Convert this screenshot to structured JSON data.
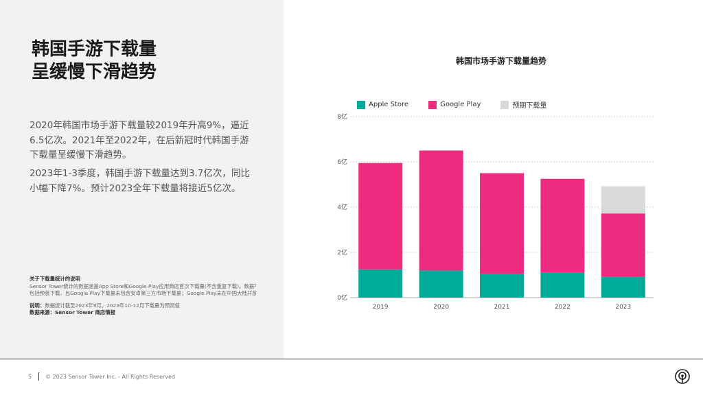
{
  "slide": {
    "title_line1": "韩国手游下载量",
    "title_line2": "呈缓慢下滑趋势",
    "paragraph1": "2020年韩国市场手游下载量较2019年升高9%，逼近6.5亿次。2021年至2022年，在后新冠时代韩国手游下载量呈缓慢下滑趋势。",
    "paragraph2": "2023年1-3季度，韩国手游下载量达到3.7亿次，同比小幅下降7%。预计2023全年下载量将接近5亿次。",
    "notes": {
      "heading": "关于下载量统计的说明",
      "line1": "Sensor Tower统计的数据涵盖App Store和Google Play应用商店首次下载量(不含重复下载)。数据不",
      "line2": "包括预装下载，且Google Play下载量未包含安卓第三方市场下载量；Google Play未在中国大陆开放。",
      "line3_label": "说明：",
      "line3": "数据统计截至2023年9月。2023年10-12月下载量为预测值",
      "line4_label": "数据来源：",
      "line4": "Sensor Tower 商店情报"
    },
    "footer": {
      "page": "5",
      "copyright": "© 2023 Sensor Tower Inc. - All Rights Reserved"
    }
  },
  "chart_data": {
    "type": "bar",
    "title": "韩国市场手游下载量趋势",
    "categories": [
      "2019",
      "2020",
      "2021",
      "2022",
      "2023"
    ],
    "series": [
      {
        "name": "Apple Store",
        "color": "#00ab9a",
        "values": [
          1.25,
          1.2,
          1.05,
          1.1,
          0.92
        ]
      },
      {
        "name": "Google Play",
        "color": "#ee2b7f",
        "values": [
          4.7,
          5.3,
          4.45,
          4.15,
          2.8
        ]
      },
      {
        "name": "预期下载量",
        "color": "#d9d9d9",
        "values": [
          0,
          0,
          0,
          0,
          1.2
        ]
      }
    ],
    "yticks": [
      "0亿",
      "2亿",
      "4亿",
      "6亿",
      "8亿"
    ],
    "ylim": [
      0,
      8
    ],
    "stacked": true,
    "grid": true,
    "legend_position": "top-left"
  }
}
